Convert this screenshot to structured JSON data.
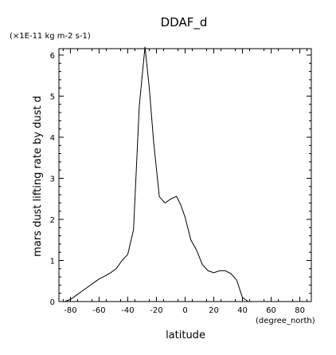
{
  "chart_data": {
    "type": "line",
    "title": "DDAF_d",
    "ylabel": "mars dust lifting rate by dust d",
    "yunits": "(×1E-11 kg m-2 s-1)",
    "xlabel": "latitude",
    "xunits": "(degree_north)",
    "xlim": [
      -88,
      88
    ],
    "ylim": [
      0,
      6.2
    ],
    "xticks": [
      "-80",
      "-60",
      "-40",
      "-20",
      "0",
      "20",
      "40",
      "60",
      "80"
    ],
    "yticks": [
      "0",
      "1",
      "2",
      "3",
      "4",
      "5",
      "6"
    ],
    "grid": false,
    "series": [
      {
        "x": [
          -84,
          -80,
          -76,
          -72,
          -68,
          -64,
          -60,
          -56,
          -52,
          -48,
          -44,
          -40,
          -36,
          -32,
          -28,
          -25,
          -22,
          -18,
          -14,
          -10,
          -6,
          -3,
          0,
          4,
          8,
          12,
          16,
          20,
          24,
          28,
          32,
          36,
          40,
          44,
          48,
          52
        ],
        "values": [
          0.0,
          0.05,
          0.15,
          0.25,
          0.35,
          0.45,
          0.55,
          0.62,
          0.7,
          0.8,
          1.0,
          1.15,
          1.75,
          4.75,
          6.2,
          5.2,
          3.9,
          2.55,
          2.4,
          2.5,
          2.56,
          2.35,
          2.05,
          1.5,
          1.25,
          0.9,
          0.75,
          0.7,
          0.75,
          0.75,
          0.68,
          0.52,
          0.1,
          0.0,
          0.0,
          0.0
        ]
      }
    ]
  }
}
